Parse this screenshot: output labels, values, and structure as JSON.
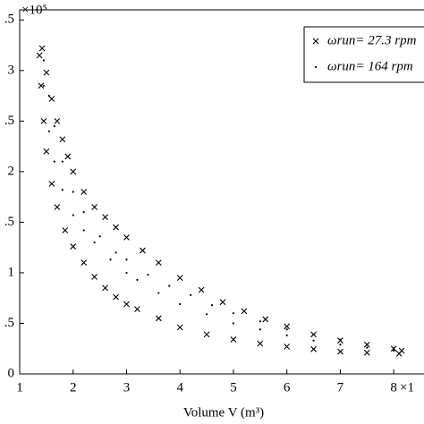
{
  "chart_data": {
    "type": "scatter",
    "xlabel": "Volume  V (m³)",
    "x_multiplier": "×1",
    "y_multiplier": "×10⁵",
    "xlim": [
      1,
      8.6
    ],
    "ylim": [
      0,
      3.6
    ],
    "xticks": [
      1,
      2,
      3,
      4,
      5,
      6,
      7,
      8
    ],
    "yticks": [
      0,
      {
        "value": 0.5,
        "label": ".5"
      },
      1,
      {
        "value": 1.5,
        "label": ".5"
      },
      2,
      {
        "value": 2.5,
        "label": ".5"
      },
      3,
      {
        "value": 3.5,
        "label": ".5"
      }
    ],
    "grid": false,
    "legend": "upper right",
    "series": [
      {
        "name": "ωrun= 27.3 rpm",
        "marker": "x",
        "color": "#000000",
        "x": [
          1.42,
          1.5,
          1.6,
          1.7,
          1.8,
          1.9,
          2.0,
          2.2,
          2.4,
          2.6,
          2.8,
          3.0,
          3.3,
          3.6,
          4.0,
          4.4,
          4.8,
          5.2,
          5.6,
          6.0,
          6.5,
          7.0,
          7.5,
          8.0,
          8.15,
          8.1,
          7.5,
          7.0,
          6.5,
          6.0,
          5.5,
          5.0,
          4.5,
          4.0,
          3.6,
          3.2,
          3.0,
          2.8,
          2.6,
          2.4,
          2.2,
          2.0,
          1.85,
          1.7,
          1.6,
          1.5,
          1.45,
          1.4,
          1.37
        ],
        "values": [
          3.22,
          2.98,
          2.72,
          2.5,
          2.32,
          2.15,
          2.0,
          1.8,
          1.65,
          1.55,
          1.45,
          1.35,
          1.22,
          1.1,
          0.95,
          0.83,
          0.71,
          0.62,
          0.54,
          0.47,
          0.39,
          0.33,
          0.29,
          0.25,
          0.23,
          0.2,
          0.21,
          0.22,
          0.245,
          0.27,
          0.3,
          0.34,
          0.39,
          0.46,
          0.55,
          0.64,
          0.69,
          0.76,
          0.85,
          0.96,
          1.1,
          1.26,
          1.42,
          1.65,
          1.88,
          2.2,
          2.5,
          2.85,
          3.15
        ]
      },
      {
        "name": "ωrun= 164 rpm",
        "marker": "dot",
        "color": "#000000",
        "x": [
          1.45,
          1.55,
          1.65,
          1.8,
          2.0,
          2.2,
          2.5,
          2.8,
          3.0,
          3.4,
          3.8,
          4.2,
          4.6,
          5.0,
          5.5,
          6.0,
          6.5,
          7.0,
          7.5,
          8.0,
          8.0,
          7.5,
          7.0,
          6.5,
          6.0,
          5.5,
          5.0,
          4.5,
          4.0,
          3.6,
          3.2,
          3.0,
          2.7,
          2.4,
          2.2,
          2.0,
          1.8,
          1.65,
          1.55,
          1.45
        ],
        "values": [
          3.1,
          2.75,
          2.45,
          2.1,
          1.8,
          1.6,
          1.36,
          1.2,
          1.13,
          0.98,
          0.87,
          0.78,
          0.68,
          0.6,
          0.52,
          0.44,
          0.39,
          0.34,
          0.29,
          0.25,
          0.23,
          0.26,
          0.29,
          0.33,
          0.38,
          0.44,
          0.5,
          0.59,
          0.69,
          0.8,
          0.93,
          1.0,
          1.13,
          1.3,
          1.42,
          1.57,
          1.82,
          2.1,
          2.4,
          2.85
        ]
      }
    ]
  }
}
